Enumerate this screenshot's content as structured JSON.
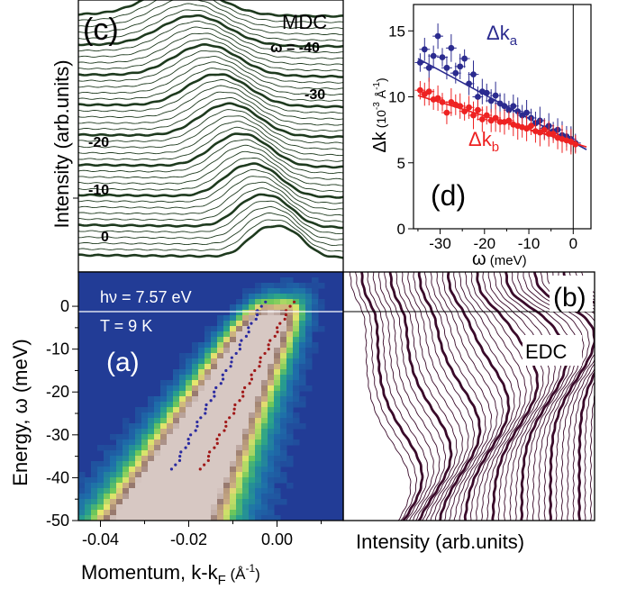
{
  "panels": {
    "a": {
      "label": "(a)",
      "photon_text": "hν = 7.57 eV",
      "temp_text": "T = 9 K",
      "xlabel_main": "Momentum, k-k",
      "xlabel_sub": "F",
      "xlabel_unit_open": " (Å",
      "xlabel_unit_exp": "-1",
      "xlabel_unit_close": ")",
      "ylabel": "Energy, ω  (meV)",
      "x_ticks": [
        "-0.04",
        "-0.02",
        "0.00"
      ],
      "y_ticks": [
        "0",
        "-10",
        "-20",
        "-30",
        "-40",
        "-50"
      ]
    },
    "b": {
      "label": "(b)",
      "tag": "EDC",
      "xlabel": "Intensity (arb.units)"
    },
    "c": {
      "label": "(c)",
      "tag": "MDC",
      "ylabel": "Intensity (arb.units)",
      "omega_labels": [
        "ω = -40",
        "-30",
        "-20",
        "-10",
        "0"
      ]
    },
    "d": {
      "label": "(d)",
      "series_a_label_base": "Δk",
      "series_a_label_sub": "a",
      "series_b_label_base": "Δk",
      "series_b_label_sub": "b",
      "ylabel_main": "Δk",
      "ylabel_unit": "(10",
      "ylabel_unit_exp": "-3",
      "ylabel_unit_tail": " Å",
      "ylabel_unit_exp2": "-1",
      "ylabel_unit_close": ")",
      "xlabel_main": "ω",
      "xlabel_unit": " (meV)",
      "x_ticks": [
        "-30",
        "-20",
        "-10",
        "0"
      ],
      "y_ticks": [
        "0",
        "5",
        "10",
        "15"
      ]
    }
  },
  "colors": {
    "series_a": "#2b2b8f",
    "series_b": "#ee2222",
    "mdc_curve": "#1e3a1e",
    "edc_curve": "#3a0a2a",
    "dot_a": "#2a2aa0",
    "dot_b": "#a01818"
  },
  "chart_data": [
    {
      "type": "heatmap",
      "panel": "a",
      "xlim": [
        -0.045,
        0.015
      ],
      "ylim": [
        -50,
        8
      ],
      "dispersion_a": {
        "k": [
          -0.0235,
          -0.003
        ],
        "omega": [
          -38,
          1
        ]
      },
      "dispersion_b": {
        "k": [
          -0.017,
          0.0035
        ],
        "omega": [
          -38,
          1
        ]
      }
    },
    {
      "type": "line",
      "panel": "c",
      "xlim": [
        -0.045,
        0.015
      ],
      "n_curves": 41,
      "thick_every": 5
    },
    {
      "type": "line",
      "panel": "b",
      "n_curves": 41,
      "thick_every": 5
    },
    {
      "type": "scatter",
      "panel": "d",
      "xlim": [
        -36,
        4
      ],
      "ylim": [
        0,
        17
      ],
      "series": [
        {
          "name": "Δk_a",
          "x": [
            -34.5,
            -33.5,
            -32.5,
            -31.5,
            -30.5,
            -29.5,
            -28.5,
            -27.5,
            -26.5,
            -25.5,
            -24.5,
            -23.5,
            -22.5,
            -21.5,
            -20.5,
            -19.5,
            -18.5,
            -17.5,
            -16.5,
            -15.5,
            -14.5,
            -13.5,
            -12.5,
            -11.5,
            -10.5,
            -9.5,
            -8.5,
            -7.5,
            -6.5,
            -5.5,
            -4.5,
            -3.5,
            -2.5,
            -1.5,
            -0.5,
            0.5
          ],
          "y": [
            12.6,
            13.6,
            12.2,
            13.1,
            14.6,
            13.0,
            12.2,
            13.7,
            11.8,
            12.3,
            12.9,
            11.0,
            11.7,
            10.0,
            10.4,
            10.3,
            9.7,
            10.1,
            9.5,
            9.3,
            9.0,
            9.3,
            8.9,
            8.6,
            8.8,
            8.4,
            8.0,
            8.2,
            7.6,
            7.8,
            7.4,
            7.5,
            7.1,
            7.0,
            6.8,
            6.5
          ]
        },
        {
          "name": "Δk_b",
          "x": [
            -34.5,
            -33.5,
            -32.5,
            -31.5,
            -30.5,
            -29.5,
            -28.5,
            -27.5,
            -26.5,
            -25.5,
            -24.5,
            -23.5,
            -22.5,
            -21.5,
            -20.5,
            -19.5,
            -18.5,
            -17.5,
            -16.5,
            -15.5,
            -14.5,
            -13.5,
            -12.5,
            -11.5,
            -10.5,
            -9.5,
            -8.5,
            -7.5,
            -6.5,
            -5.5,
            -4.5,
            -3.5,
            -2.5,
            -1.5,
            -0.5,
            0.5
          ],
          "y": [
            10.5,
            10.2,
            10.4,
            9.8,
            9.9,
            9.6,
            8.8,
            9.6,
            9.4,
            9.3,
            8.9,
            9.2,
            8.6,
            9.0,
            8.3,
            8.6,
            8.2,
            8.4,
            8.1,
            8.1,
            8.2,
            7.9,
            7.8,
            7.7,
            7.6,
            7.8,
            7.4,
            7.3,
            7.5,
            7.2,
            7.2,
            6.9,
            6.8,
            6.7,
            6.6,
            6.4
          ]
        }
      ],
      "fits": [
        {
          "name": "fit_a",
          "x": [
            -35,
            3
          ],
          "y": [
            12.9,
            6.0
          ]
        },
        {
          "name": "fit_b",
          "x": [
            -35,
            3
          ],
          "y": [
            10.1,
            6.2
          ]
        }
      ]
    }
  ]
}
